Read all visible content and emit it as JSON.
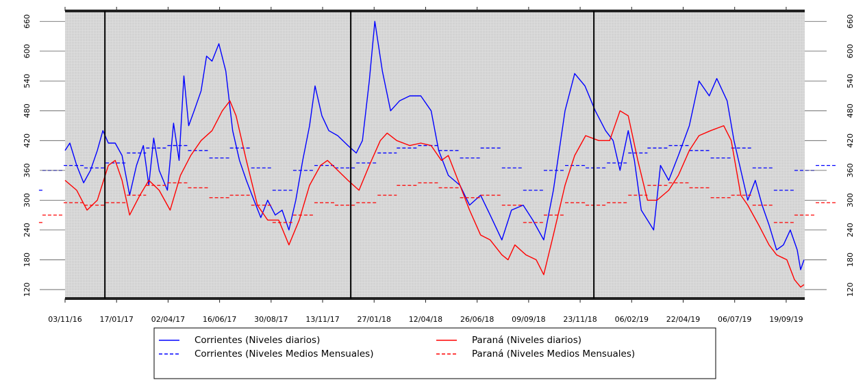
{
  "chart_data": {
    "type": "line",
    "xlim": [
      "2016-11-03",
      "2019-10-16"
    ],
    "ylim": [
      102,
      681
    ],
    "yticks": [
      120,
      180,
      240,
      300,
      360,
      420,
      480,
      540,
      600,
      660
    ],
    "xticks": [
      {
        "value": "2016-11-03",
        "label": "03/11/16"
      },
      {
        "value": "2017-01-17",
        "label": "17/01/17"
      },
      {
        "value": "2017-04-02",
        "label": "02/04/17"
      },
      {
        "value": "2017-06-16",
        "label": "16/06/17"
      },
      {
        "value": "2017-08-30",
        "label": "30/08/17"
      },
      {
        "value": "2017-11-13",
        "label": "13/11/17"
      },
      {
        "value": "2018-01-27",
        "label": "27/01/18"
      },
      {
        "value": "2018-04-12",
        "label": "12/04/18"
      },
      {
        "value": "2018-06-26",
        "label": "26/06/18"
      },
      {
        "value": "2018-09-09",
        "label": "09/09/18"
      },
      {
        "value": "2018-11-23",
        "label": "23/11/18"
      },
      {
        "value": "2019-02-06",
        "label": "06/02/19"
      },
      {
        "value": "2019-04-22",
        "label": "22/04/19"
      },
      {
        "value": "2019-07-06",
        "label": "06/07/19"
      },
      {
        "value": "2019-09-19",
        "label": "19/09/19"
      }
    ],
    "vlines": [
      "2016-12-31",
      "2017-12-24",
      "2018-12-13"
    ],
    "series": [
      {
        "name": "Corrientes (Niveles diarios)",
        "color": "#0000ff",
        "style": "solid",
        "x": [
          "2016-11-03",
          "2016-11-10",
          "2016-11-20",
          "2016-11-30",
          "2016-12-10",
          "2016-12-20",
          "2016-12-28",
          "2017-01-05",
          "2017-01-15",
          "2017-01-25",
          "2017-02-05",
          "2017-02-15",
          "2017-02-25",
          "2017-03-05",
          "2017-03-12",
          "2017-03-20",
          "2017-04-01",
          "2017-04-10",
          "2017-04-18",
          "2017-04-25",
          "2017-05-02",
          "2017-05-10",
          "2017-05-20",
          "2017-05-28",
          "2017-06-05",
          "2017-06-15",
          "2017-06-25",
          "2017-07-05",
          "2017-07-15",
          "2017-07-25",
          "2017-08-05",
          "2017-08-15",
          "2017-08-25",
          "2017-09-05",
          "2017-09-15",
          "2017-09-25",
          "2017-10-05",
          "2017-10-15",
          "2017-10-25",
          "2017-11-02",
          "2017-11-12",
          "2017-11-22",
          "2017-12-05",
          "2017-12-20",
          "2018-01-01",
          "2018-01-10",
          "2018-01-20",
          "2018-01-28",
          "2018-02-08",
          "2018-02-20",
          "2018-03-05",
          "2018-03-20",
          "2018-04-05",
          "2018-04-20",
          "2018-05-01",
          "2018-05-15",
          "2018-06-01",
          "2018-06-15",
          "2018-07-01",
          "2018-07-15",
          "2018-08-01",
          "2018-08-15",
          "2018-09-01",
          "2018-09-15",
          "2018-10-01",
          "2018-10-15",
          "2018-11-01",
          "2018-11-15",
          "2018-11-30",
          "2018-12-15",
          "2018-12-30",
          "2019-01-10",
          "2019-01-20",
          "2019-02-01",
          "2019-02-10",
          "2019-02-20",
          "2019-03-01",
          "2019-03-10",
          "2019-03-20",
          "2019-04-01",
          "2019-04-15",
          "2019-05-01",
          "2019-05-15",
          "2019-05-30",
          "2019-06-10",
          "2019-06-25",
          "2019-07-05",
          "2019-07-15",
          "2019-07-25",
          "2019-08-05",
          "2019-08-15",
          "2019-08-25",
          "2019-09-05",
          "2019-09-15",
          "2019-09-25",
          "2019-10-05",
          "2019-10-10",
          "2019-10-15"
        ],
        "values": [
          400,
          415,
          370,
          335,
          360,
          400,
          440,
          415,
          415,
          390,
          310,
          370,
          410,
          330,
          425,
          360,
          320,
          455,
          380,
          550,
          450,
          480,
          520,
          590,
          580,
          615,
          560,
          440,
          380,
          340,
          300,
          265,
          300,
          270,
          280,
          240,
          300,
          380,
          450,
          530,
          470,
          440,
          430,
          410,
          395,
          420,
          540,
          660,
          560,
          480,
          500,
          510,
          510,
          480,
          400,
          350,
          330,
          290,
          310,
          270,
          220,
          280,
          290,
          260,
          220,
          320,
          480,
          555,
          530,
          480,
          440,
          420,
          360,
          440,
          380,
          280,
          260,
          240,
          370,
          340,
          390,
          450,
          540,
          510,
          545,
          500,
          420,
          360,
          300,
          340,
          290,
          250,
          200,
          210,
          240,
          200,
          160,
          180
        ]
      },
      {
        "name": "Corrientes (Niveles Medios Mensuales)",
        "color": "#0000ff",
        "style": "step",
        "x": [
          "2016-09-26",
          "2016-10-01",
          "2016-11-01",
          "2016-12-01",
          "2017-01-01",
          "2017-02-01",
          "2017-03-01",
          "2017-04-01",
          "2017-05-01",
          "2017-06-01",
          "2017-07-01",
          "2017-08-01",
          "2017-09-01",
          "2017-10-01",
          "2017-11-01",
          "2017-12-01",
          "2018-01-01",
          "2018-02-01",
          "2018-03-01",
          "2018-04-01",
          "2018-05-01",
          "2018-06-01",
          "2018-07-01",
          "2018-08-01",
          "2018-09-01",
          "2018-10-01",
          "2018-11-01",
          "2018-12-01",
          "2019-01-01",
          "2019-02-01",
          "2019-03-01",
          "2019-04-01",
          "2019-05-01",
          "2019-06-01",
          "2019-07-01",
          "2019-08-01",
          "2019-09-01",
          "2019-10-01",
          "2019-11-01"
        ],
        "values": [
          320,
          360,
          370,
          365,
          375,
          395,
          405,
          410,
          400,
          385,
          405,
          365,
          320,
          360,
          370,
          365,
          375,
          395,
          405,
          410,
          400,
          385,
          405,
          365,
          320,
          360,
          370,
          365,
          375,
          395,
          405,
          410,
          400,
          385,
          405,
          365,
          320,
          360,
          370
        ]
      },
      {
        "name": "Paraná (Niveles diarios)",
        "color": "#ff0000",
        "style": "solid",
        "x": [
          "2016-11-03",
          "2016-11-20",
          "2016-12-05",
          "2016-12-20",
          "2017-01-05",
          "2017-01-15",
          "2017-01-25",
          "2017-02-05",
          "2017-02-20",
          "2017-03-05",
          "2017-03-20",
          "2017-04-05",
          "2017-04-20",
          "2017-05-05",
          "2017-05-20",
          "2017-06-05",
          "2017-06-20",
          "2017-07-01",
          "2017-07-10",
          "2017-07-25",
          "2017-08-10",
          "2017-08-25",
          "2017-09-10",
          "2017-09-25",
          "2017-10-10",
          "2017-10-25",
          "2017-11-10",
          "2017-11-20",
          "2017-12-05",
          "2017-12-20",
          "2018-01-05",
          "2018-01-20",
          "2018-02-05",
          "2018-02-15",
          "2018-03-01",
          "2018-03-20",
          "2018-04-05",
          "2018-04-20",
          "2018-05-05",
          "2018-05-15",
          "2018-06-01",
          "2018-06-15",
          "2018-07-01",
          "2018-07-15",
          "2018-08-01",
          "2018-08-10",
          "2018-08-20",
          "2018-09-05",
          "2018-09-20",
          "2018-10-01",
          "2018-10-15",
          "2018-11-01",
          "2018-11-15",
          "2018-12-01",
          "2018-12-20",
          "2019-01-05",
          "2019-01-20",
          "2019-02-01",
          "2019-02-15",
          "2019-03-01",
          "2019-03-15",
          "2019-04-01",
          "2019-04-15",
          "2019-05-01",
          "2019-05-15",
          "2019-06-01",
          "2019-06-20",
          "2019-07-01",
          "2019-07-15",
          "2019-07-25",
          "2019-08-10",
          "2019-08-25",
          "2019-09-05",
          "2019-09-20",
          "2019-10-01",
          "2019-10-10",
          "2019-10-15"
        ],
        "values": [
          340,
          320,
          280,
          300,
          370,
          380,
          340,
          270,
          310,
          340,
          320,
          280,
          350,
          390,
          420,
          440,
          480,
          500,
          470,
          380,
          290,
          260,
          260,
          210,
          260,
          330,
          370,
          380,
          360,
          340,
          320,
          370,
          420,
          435,
          420,
          410,
          415,
          410,
          380,
          390,
          330,
          280,
          230,
          220,
          190,
          180,
          210,
          190,
          180,
          150,
          230,
          330,
          390,
          430,
          420,
          420,
          480,
          470,
          380,
          300,
          300,
          320,
          350,
          400,
          430,
          440,
          450,
          420,
          310,
          290,
          250,
          210,
          190,
          180,
          140,
          125,
          130
        ]
      },
      {
        "name": "Paraná (Niveles Medios Mensuales)",
        "color": "#ff0000",
        "style": "step",
        "x": [
          "2016-09-26",
          "2016-10-01",
          "2016-11-01",
          "2016-12-01",
          "2017-01-01",
          "2017-02-01",
          "2017-03-01",
          "2017-04-01",
          "2017-05-01",
          "2017-06-01",
          "2017-07-01",
          "2017-08-01",
          "2017-09-01",
          "2017-10-01",
          "2017-11-01",
          "2017-12-01",
          "2018-01-01",
          "2018-02-01",
          "2018-03-01",
          "2018-04-01",
          "2018-05-01",
          "2018-06-01",
          "2018-07-01",
          "2018-08-01",
          "2018-09-01",
          "2018-10-01",
          "2018-11-01",
          "2018-12-01",
          "2019-01-01",
          "2019-02-01",
          "2019-03-01",
          "2019-04-01",
          "2019-05-01",
          "2019-06-01",
          "2019-07-01",
          "2019-08-01",
          "2019-09-01",
          "2019-10-01",
          "2019-11-01"
        ],
        "values": [
          255,
          270,
          295,
          290,
          295,
          310,
          330,
          335,
          325,
          305,
          310,
          290,
          255,
          270,
          295,
          290,
          295,
          310,
          330,
          335,
          325,
          305,
          310,
          290,
          255,
          270,
          295,
          290,
          295,
          310,
          330,
          335,
          325,
          305,
          310,
          290,
          255,
          270,
          295
        ]
      }
    ]
  }
}
